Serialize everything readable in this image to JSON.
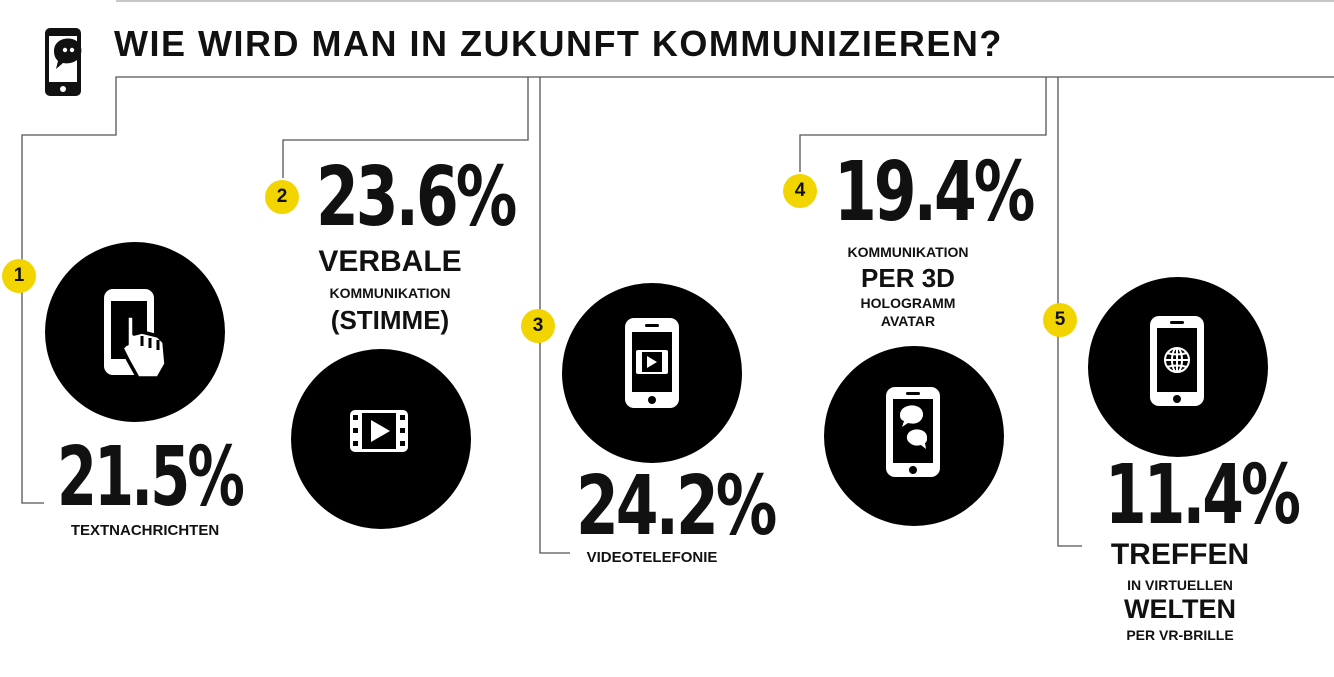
{
  "title": "WIE WIRD MAN IN ZUKUNFT KOMMUNIZIEREN?",
  "header_icon": "smartphone-speech-bubble-icon",
  "accent_color": "#f2d500",
  "items": [
    {
      "rank": "1",
      "percent": "21.5%",
      "label_lines": [
        "TEXTNACHRICHTEN"
      ],
      "icon": "smartphone-touch-hand-icon"
    },
    {
      "rank": "2",
      "percent": "23.6%",
      "label_lines": [
        "VERBALE",
        "KOMMUNIKATION",
        "(STIMME)"
      ],
      "icon": "video-film-icon"
    },
    {
      "rank": "3",
      "percent": "24.2%",
      "label_lines": [
        "VIDEOTELEFONIE"
      ],
      "icon": "smartphone-video-icon"
    },
    {
      "rank": "4",
      "percent": "19.4%",
      "label_lines": [
        "KOMMUNIKATION",
        "PER 3D",
        "HOLOGRAMM",
        "AVATAR"
      ],
      "icon": "smartphone-chat-bubbles-icon"
    },
    {
      "rank": "5",
      "percent": "11.4%",
      "label_lines": [
        "TREFFEN",
        "IN VIRTUELLEN",
        "WELTEN",
        "PER VR-BRILLE"
      ],
      "icon": "smartphone-globe-icon"
    }
  ]
}
